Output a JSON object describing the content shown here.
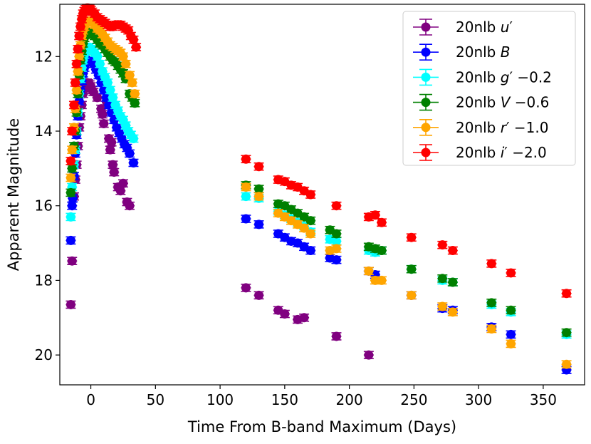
{
  "chart_data": {
    "type": "scatter",
    "title": "",
    "xlabel": "Time From B-band Maximum (Days)",
    "ylabel": "Apparent Magnitude",
    "xlim": [
      -24,
      382
    ],
    "ylim": [
      20.8,
      10.6
    ],
    "y_inverted": true,
    "grid": false,
    "legend_position": "top-right",
    "xticks": [
      0,
      50,
      100,
      150,
      200,
      250,
      300,
      350
    ],
    "yticks": [
      12,
      14,
      16,
      18,
      20
    ],
    "series": [
      {
        "name": "20nlb u'",
        "label_text": "20nlb",
        "band": "u",
        "offset_text": "",
        "color": "#800080",
        "points": [
          [
            -15.5,
            18.65
          ],
          [
            -14.5,
            17.48
          ],
          [
            -13,
            15.75
          ],
          [
            -12,
            15.3
          ],
          [
            -11,
            14.9
          ],
          [
            -10,
            14.4
          ],
          [
            -9,
            13.9
          ],
          [
            -8,
            13.6
          ],
          [
            -7,
            13.3
          ],
          [
            -6,
            13.0
          ],
          [
            -5,
            12.85
          ],
          [
            -4,
            12.75
          ],
          [
            -3,
            12.7
          ],
          [
            -2,
            12.72
          ],
          [
            -1,
            12.75
          ],
          [
            0,
            12.8
          ],
          [
            1,
            12.9
          ],
          [
            2,
            12.95
          ],
          [
            5,
            13.1
          ],
          [
            8,
            13.4
          ],
          [
            9,
            13.55
          ],
          [
            10,
            13.8
          ],
          [
            12,
            13.2
          ],
          [
            14,
            14.2
          ],
          [
            15,
            14.5
          ],
          [
            16,
            14.3
          ],
          [
            17,
            14.9
          ],
          [
            18,
            15.1
          ],
          [
            21,
            15.5
          ],
          [
            23,
            15.6
          ],
          [
            25,
            15.4
          ],
          [
            28,
            15.9
          ],
          [
            30,
            16.0
          ],
          [
            120,
            18.2
          ],
          [
            130,
            18.4
          ],
          [
            145,
            18.8
          ],
          [
            150,
            18.9
          ],
          [
            160,
            19.05
          ],
          [
            165,
            19.0
          ],
          [
            190,
            19.5
          ],
          [
            215,
            20.0
          ]
        ]
      },
      {
        "name": "20nlb B",
        "label_text": "20nlb",
        "band": "B",
        "offset_text": "",
        "color": "#0000ff",
        "points": [
          [
            -15.5,
            16.93
          ],
          [
            -14.5,
            16.0
          ],
          [
            -14,
            15.8
          ],
          [
            -13,
            15.2
          ],
          [
            -12,
            14.6
          ],
          [
            -11,
            14.1
          ],
          [
            -10,
            13.6
          ],
          [
            -9,
            13.2
          ],
          [
            -8,
            12.9
          ],
          [
            -7,
            12.65
          ],
          [
            -6,
            12.45
          ],
          [
            -5,
            12.3
          ],
          [
            -4,
            12.2
          ],
          [
            -3,
            12.12
          ],
          [
            -2,
            12.1
          ],
          [
            -1,
            12.1
          ],
          [
            0,
            12.1
          ],
          [
            1,
            12.15
          ],
          [
            2,
            12.2
          ],
          [
            4,
            12.35
          ],
          [
            6,
            12.5
          ],
          [
            8,
            12.7
          ],
          [
            10,
            12.9
          ],
          [
            12,
            13.1
          ],
          [
            14,
            13.3
          ],
          [
            16,
            13.5
          ],
          [
            18,
            13.7
          ],
          [
            20,
            13.9
          ],
          [
            22,
            14.05
          ],
          [
            24,
            14.2
          ],
          [
            26,
            14.35
          ],
          [
            28,
            14.45
          ],
          [
            30,
            14.6
          ],
          [
            33,
            14.85
          ],
          [
            120,
            16.35
          ],
          [
            130,
            16.5
          ],
          [
            145,
            16.75
          ],
          [
            150,
            16.85
          ],
          [
            155,
            16.95
          ],
          [
            160,
            17.0
          ],
          [
            165,
            17.1
          ],
          [
            170,
            17.2
          ],
          [
            185,
            17.4
          ],
          [
            190,
            17.45
          ],
          [
            215,
            17.75
          ],
          [
            220,
            17.85
          ],
          [
            248,
            18.4
          ],
          [
            272,
            18.75
          ],
          [
            280,
            18.8
          ],
          [
            310,
            19.25
          ],
          [
            325,
            19.45
          ],
          [
            368,
            20.4
          ]
        ]
      },
      {
        "name": "20nlb g' −0.2",
        "label_text": "20nlb",
        "band": "g",
        "offset_text": "−0.2",
        "color": "#00ffff",
        "points": [
          [
            -15.5,
            16.3
          ],
          [
            -14.5,
            15.5
          ],
          [
            -13,
            14.9
          ],
          [
            -12,
            14.5
          ],
          [
            -11,
            14.0
          ],
          [
            -10,
            13.5
          ],
          [
            -9,
            13.0
          ],
          [
            -8,
            12.6
          ],
          [
            -7,
            12.3
          ],
          [
            -6,
            12.1
          ],
          [
            -5,
            11.95
          ],
          [
            -4,
            11.85
          ],
          [
            -3,
            11.78
          ],
          [
            -2,
            11.75
          ],
          [
            -1,
            11.75
          ],
          [
            0,
            11.8
          ],
          [
            1,
            11.82
          ],
          [
            3,
            11.9
          ],
          [
            5,
            12.0
          ],
          [
            7,
            12.2
          ],
          [
            9,
            12.4
          ],
          [
            11,
            12.55
          ],
          [
            13,
            12.7
          ],
          [
            15,
            12.9
          ],
          [
            17,
            13.1
          ],
          [
            19,
            13.3
          ],
          [
            21,
            13.45
          ],
          [
            23,
            13.6
          ],
          [
            25,
            13.7
          ],
          [
            27,
            13.85
          ],
          [
            29,
            14.0
          ],
          [
            31,
            14.1
          ],
          [
            33,
            14.2
          ],
          [
            120,
            15.75
          ],
          [
            130,
            15.8
          ],
          [
            145,
            16.15
          ],
          [
            150,
            16.25
          ],
          [
            155,
            16.35
          ],
          [
            160,
            16.45
          ],
          [
            165,
            16.55
          ],
          [
            170,
            16.7
          ],
          [
            185,
            16.9
          ],
          [
            190,
            16.95
          ],
          [
            215,
            17.2
          ],
          [
            220,
            17.25
          ],
          [
            225,
            17.2
          ],
          [
            248,
            17.7
          ],
          [
            272,
            18.0
          ],
          [
            280,
            18.05
          ],
          [
            310,
            18.65
          ],
          [
            325,
            18.85
          ],
          [
            368,
            19.45
          ]
        ]
      },
      {
        "name": "20nlb V −0.6",
        "label_text": "20nlb",
        "band": "V",
        "offset_text": "−0.6",
        "color": "#008000",
        "points": [
          [
            -15.5,
            15.65
          ],
          [
            -14.5,
            15.0
          ],
          [
            -13,
            14.4
          ],
          [
            -12,
            14.0
          ],
          [
            -11,
            13.5
          ],
          [
            -10,
            13.0
          ],
          [
            -9,
            12.5
          ],
          [
            -8,
            12.1
          ],
          [
            -7,
            11.85
          ],
          [
            -6,
            11.65
          ],
          [
            -5,
            11.5
          ],
          [
            -4,
            11.42
          ],
          [
            -3,
            11.38
          ],
          [
            -2,
            11.35
          ],
          [
            -1,
            11.35
          ],
          [
            0,
            11.35
          ],
          [
            1,
            11.4
          ],
          [
            3,
            11.45
          ],
          [
            5,
            11.55
          ],
          [
            7,
            11.65
          ],
          [
            9,
            11.7
          ],
          [
            11,
            11.8
          ],
          [
            13,
            11.9
          ],
          [
            15,
            12.0
          ],
          [
            17,
            12.1
          ],
          [
            19,
            12.15
          ],
          [
            21,
            12.25
          ],
          [
            23,
            12.35
          ],
          [
            25,
            12.45
          ],
          [
            27,
            12.6
          ],
          [
            30,
            13.0
          ],
          [
            32,
            13.1
          ],
          [
            34,
            13.25
          ],
          [
            120,
            15.45
          ],
          [
            130,
            15.55
          ],
          [
            145,
            15.95
          ],
          [
            150,
            16.0
          ],
          [
            155,
            16.1
          ],
          [
            160,
            16.2
          ],
          [
            165,
            16.3
          ],
          [
            170,
            16.4
          ],
          [
            185,
            16.65
          ],
          [
            190,
            16.75
          ],
          [
            215,
            17.1
          ],
          [
            220,
            17.15
          ],
          [
            225,
            17.2
          ],
          [
            248,
            17.7
          ],
          [
            272,
            17.95
          ],
          [
            280,
            18.05
          ],
          [
            310,
            18.6
          ],
          [
            325,
            18.8
          ],
          [
            368,
            19.4
          ]
        ]
      },
      {
        "name": "20nlb r' −1.0",
        "label_text": "20nlb",
        "band": "r",
        "offset_text": "−1.0",
        "color": "#ffa500",
        "points": [
          [
            -15.5,
            15.25
          ],
          [
            -14.5,
            14.5
          ],
          [
            -13,
            13.9
          ],
          [
            -12,
            13.4
          ],
          [
            -11,
            12.9
          ],
          [
            -10,
            12.4
          ],
          [
            -9,
            12.0
          ],
          [
            -8,
            11.7
          ],
          [
            -7,
            11.45
          ],
          [
            -6,
            11.3
          ],
          [
            -5,
            11.2
          ],
          [
            -4,
            11.12
          ],
          [
            -3,
            11.08
          ],
          [
            -2,
            11.05
          ],
          [
            -1,
            11.05
          ],
          [
            0,
            11.05
          ],
          [
            1,
            11.08
          ],
          [
            3,
            11.15
          ],
          [
            5,
            11.25
          ],
          [
            7,
            11.3
          ],
          [
            9,
            11.4
          ],
          [
            11,
            11.5
          ],
          [
            13,
            11.6
          ],
          [
            15,
            11.7
          ],
          [
            17,
            11.75
          ],
          [
            19,
            11.8
          ],
          [
            21,
            11.85
          ],
          [
            23,
            11.9
          ],
          [
            25,
            12.0
          ],
          [
            27,
            12.2
          ],
          [
            30,
            12.5
          ],
          [
            32,
            12.7
          ],
          [
            34,
            13.0
          ],
          [
            120,
            15.5
          ],
          [
            130,
            15.75
          ],
          [
            145,
            16.2
          ],
          [
            150,
            16.3
          ],
          [
            155,
            16.4
          ],
          [
            160,
            16.5
          ],
          [
            165,
            16.6
          ],
          [
            170,
            16.75
          ],
          [
            185,
            17.2
          ],
          [
            190,
            17.15
          ],
          [
            215,
            17.75
          ],
          [
            220,
            18.0
          ],
          [
            225,
            18.0
          ],
          [
            248,
            18.4
          ],
          [
            272,
            18.7
          ],
          [
            280,
            18.85
          ],
          [
            310,
            19.3
          ],
          [
            325,
            19.7
          ],
          [
            368,
            20.25
          ]
        ]
      },
      {
        "name": "20nlb i' −2.0",
        "label_text": "20nlb",
        "band": "i",
        "offset_text": "−2.0",
        "color": "#ff0000",
        "points": [
          [
            -15.5,
            14.8
          ],
          [
            -14.5,
            14.0
          ],
          [
            -13,
            13.3
          ],
          [
            -12,
            12.7
          ],
          [
            -11,
            12.2
          ],
          [
            -10,
            11.8
          ],
          [
            -9,
            11.45
          ],
          [
            -8,
            11.2
          ],
          [
            -7,
            11.0
          ],
          [
            -6,
            10.85
          ],
          [
            -5,
            10.78
          ],
          [
            -4,
            10.73
          ],
          [
            -3,
            10.7
          ],
          [
            -2,
            10.7
          ],
          [
            -1,
            10.72
          ],
          [
            0,
            10.75
          ],
          [
            1,
            10.8
          ],
          [
            3,
            10.85
          ],
          [
            5,
            10.95
          ],
          [
            7,
            11.0
          ],
          [
            9,
            11.05
          ],
          [
            11,
            11.1
          ],
          [
            13,
            11.15
          ],
          [
            15,
            11.2
          ],
          [
            17,
            11.2
          ],
          [
            19,
            11.15
          ],
          [
            21,
            11.15
          ],
          [
            23,
            11.15
          ],
          [
            25,
            11.2
          ],
          [
            27,
            11.25
          ],
          [
            29,
            11.3
          ],
          [
            31,
            11.45
          ],
          [
            33,
            11.55
          ],
          [
            35,
            11.75
          ],
          [
            120,
            14.75
          ],
          [
            130,
            14.95
          ],
          [
            145,
            15.3
          ],
          [
            150,
            15.35
          ],
          [
            155,
            15.45
          ],
          [
            160,
            15.5
          ],
          [
            165,
            15.6
          ],
          [
            170,
            15.7
          ],
          [
            190,
            16.0
          ],
          [
            215,
            16.3
          ],
          [
            220,
            16.25
          ],
          [
            225,
            16.45
          ],
          [
            248,
            16.85
          ],
          [
            272,
            17.05
          ],
          [
            280,
            17.2
          ],
          [
            310,
            17.55
          ],
          [
            325,
            17.8
          ],
          [
            368,
            18.35
          ]
        ]
      }
    ]
  }
}
